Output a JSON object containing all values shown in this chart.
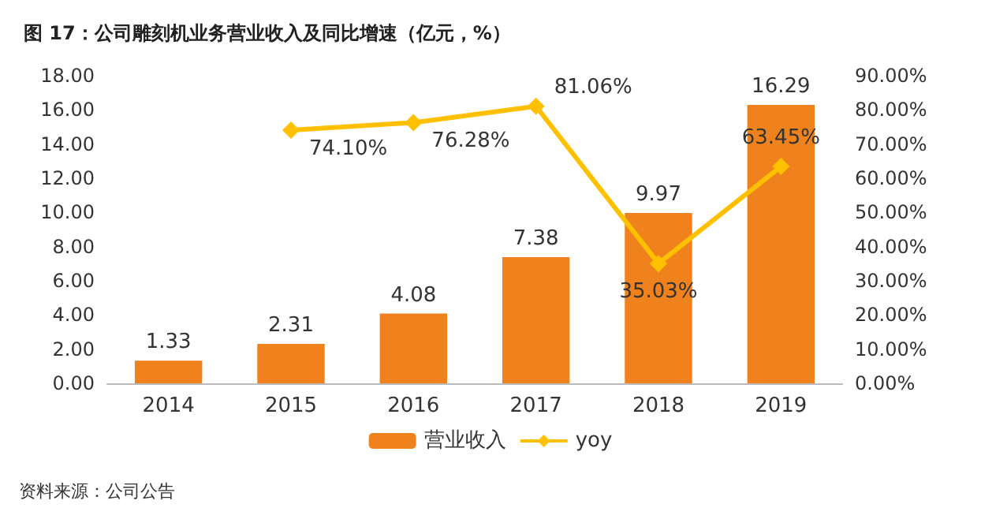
{
  "chart_data": {
    "type": "bar",
    "title": "图 17：公司雕刻机业务营业收入及同比增速（亿元，%）",
    "annotations": [
      "资料来源：公司公告"
    ],
    "categories": [
      "2014",
      "2015",
      "2016",
      "2017",
      "2018",
      "2019"
    ],
    "series": [
      {
        "name": "营业收入",
        "color": "#f0821e",
        "values": [
          1.33,
          2.31,
          4.08,
          7.38,
          9.97,
          16.29
        ],
        "value_labels": [
          "1.33",
          "2.31",
          "4.08",
          "7.38",
          "9.97",
          "16.29"
        ]
      },
      {
        "name": "yoy",
        "type": "line",
        "axis": "y2",
        "color": "#ffc000",
        "marker": "diamond",
        "values": [
          null,
          74.1,
          76.28,
          81.06,
          35.03,
          63.45
        ],
        "value_labels": [
          null,
          "74.10%",
          "76.28%",
          "81.06%",
          "35.03%",
          "63.45%"
        ]
      }
    ],
    "ylim": [
      0,
      18
    ],
    "yticks": [
      {
        "value": 0,
        "label": "0.00"
      },
      {
        "value": 2,
        "label": "2.00"
      },
      {
        "value": 4,
        "label": "4.00"
      },
      {
        "value": 6,
        "label": "6.00"
      },
      {
        "value": 8,
        "label": "8.00"
      },
      {
        "value": 10,
        "label": "10.00"
      },
      {
        "value": 12,
        "label": "12.00"
      },
      {
        "value": 14,
        "label": "14.00"
      },
      {
        "value": 16,
        "label": "16.00"
      },
      {
        "value": 18,
        "label": "18.00"
      }
    ],
    "y2lim": [
      0,
      90
    ],
    "y2ticks": [
      {
        "value": 0,
        "label": "0.00%"
      },
      {
        "value": 10,
        "label": "10.00%"
      },
      {
        "value": 20,
        "label": "20.00%"
      },
      {
        "value": 30,
        "label": "30.00%"
      },
      {
        "value": 40,
        "label": "40.00%"
      },
      {
        "value": 50,
        "label": "50.00%"
      },
      {
        "value": 60,
        "label": "60.00%"
      },
      {
        "value": 70,
        "label": "70.00%"
      },
      {
        "value": 80,
        "label": "80.00%"
      },
      {
        "value": 90,
        "label": "90.00%"
      }
    ],
    "grid": false,
    "legend": "bottom"
  }
}
